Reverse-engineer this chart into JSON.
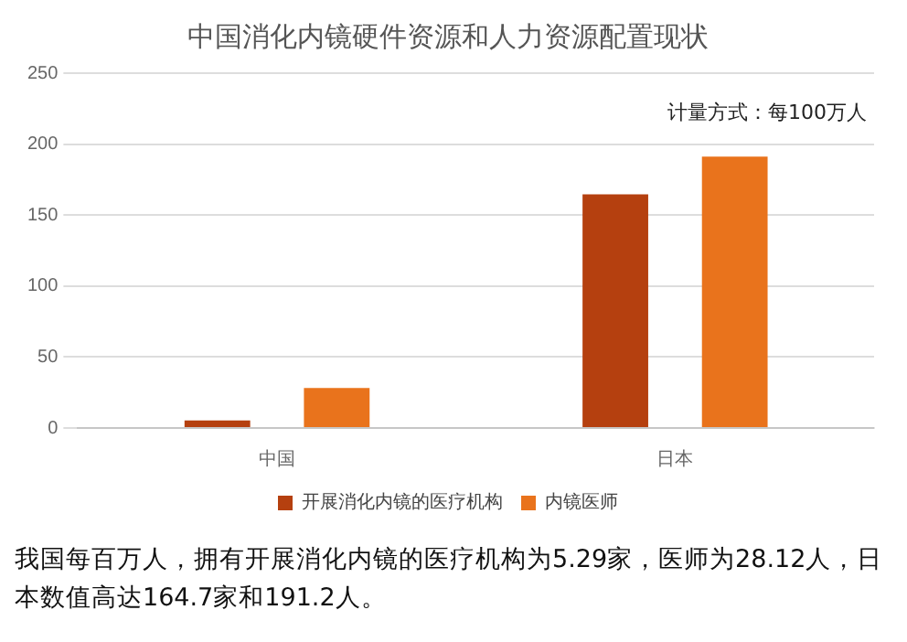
{
  "chart_data": {
    "type": "bar",
    "title": "中国消化内镜硬件资源和人力资源配置现状",
    "categories": [
      "中国",
      "日本"
    ],
    "series": [
      {
        "name": "开展消化内镜的医疗机构",
        "color": "#b5400f",
        "values": [
          5.29,
          164.7
        ]
      },
      {
        "name": "内镜医师",
        "color": "#e9731c",
        "values": [
          28.12,
          191.2
        ]
      }
    ],
    "ylim": [
      0,
      250
    ],
    "yticks": [
      0,
      50,
      100,
      150,
      200,
      250
    ],
    "grid": "y",
    "legend": "bottom",
    "annotations": [
      "计量方式：每100万人",
      "我国每百万人，拥有开展消化内镜的医疗机构为5.29家，医师为28.12人，日本数值高达164.7家和191.2人。"
    ]
  }
}
